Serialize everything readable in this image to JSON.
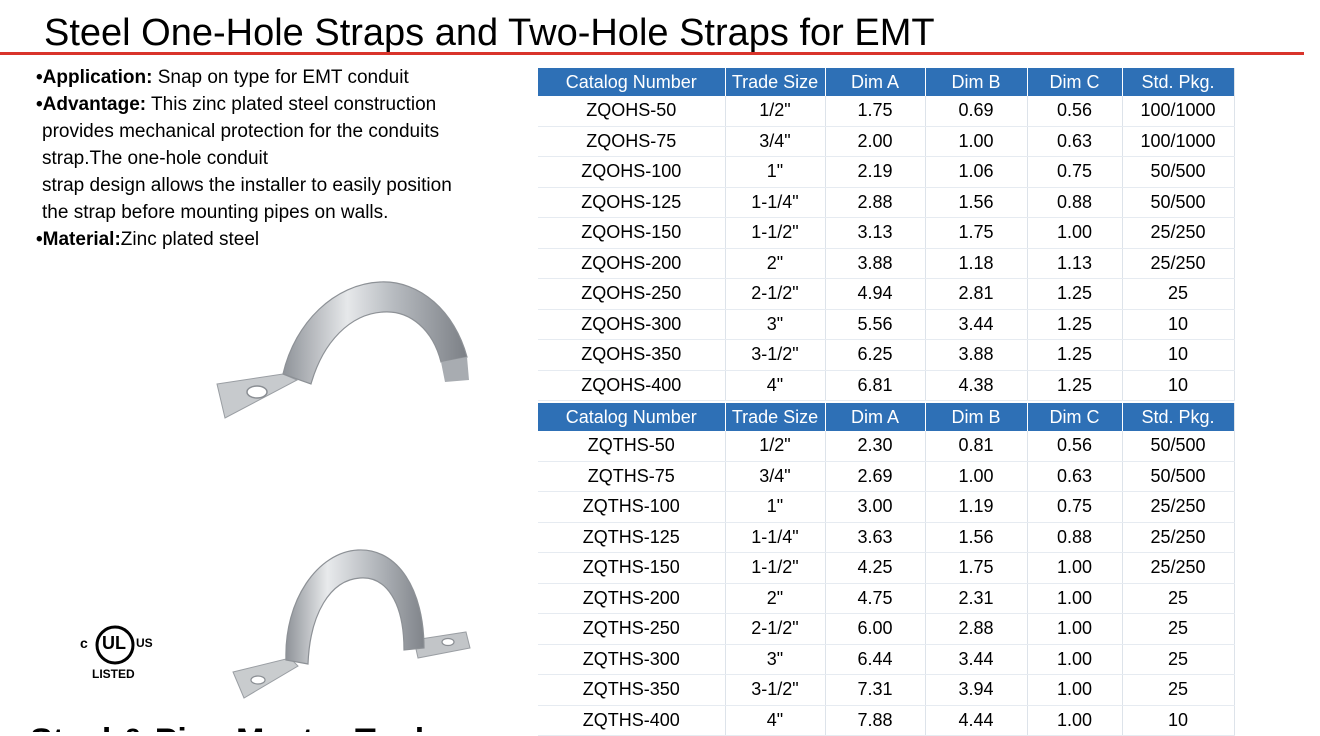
{
  "title": "Steel One-Hole Straps and Two-Hole Straps for EMT",
  "description": {
    "application_label": "•Application:",
    "application_text": " Snap on type for EMT conduit",
    "advantage_label": "•Advantage:",
    "advantage_line1": " This zinc plated steel construction",
    "advantage_line2": "provides mechanical protection for the conduits",
    "advantage_line3": "strap.The one-hole conduit",
    "advantage_line4": "strap design allows the installer to easily position",
    "advantage_line5": "the strap before mounting pipes on walls.",
    "material_label": "•Material:",
    "material_text": "Zinc plated steel"
  },
  "headers": [
    "Catalog Number",
    "Trade Size",
    "Dim A",
    "Dim B",
    "Dim C",
    "Std. Pkg."
  ],
  "one_hole": [
    [
      "ZQOHS-50",
      "1/2\"",
      "1.75",
      "0.69",
      "0.56",
      "100/1000"
    ],
    [
      "ZQOHS-75",
      "3/4\"",
      "2.00",
      "1.00",
      "0.63",
      "100/1000"
    ],
    [
      "ZQOHS-100",
      "1\"",
      "2.19",
      "1.06",
      "0.75",
      "50/500"
    ],
    [
      "ZQOHS-125",
      "1-1/4\"",
      "2.88",
      "1.56",
      "0.88",
      "50/500"
    ],
    [
      "ZQOHS-150",
      "1-1/2\"",
      "3.13",
      "1.75",
      "1.00",
      "25/250"
    ],
    [
      "ZQOHS-200",
      "2\"",
      "3.88",
      "1.18",
      "1.13",
      "25/250"
    ],
    [
      "ZQOHS-250",
      "2-1/2\"",
      "4.94",
      "2.81",
      "1.25",
      "25"
    ],
    [
      "ZQOHS-300",
      "3\"",
      "5.56",
      "3.44",
      "1.25",
      "10"
    ],
    [
      "ZQOHS-350",
      "3-1/2\"",
      "6.25",
      "3.88",
      "1.25",
      "10"
    ],
    [
      "ZQOHS-400",
      "4\"",
      "6.81",
      "4.38",
      "1.25",
      "10"
    ]
  ],
  "two_hole": [
    [
      "ZQTHS-50",
      "1/2\"",
      "2.30",
      "0.81",
      "0.56",
      "50/500"
    ],
    [
      "ZQTHS-75",
      "3/4\"",
      "2.69",
      "1.00",
      "0.63",
      "50/500"
    ],
    [
      "ZQTHS-100",
      "1\"",
      "3.00",
      "1.19",
      "0.75",
      "25/250"
    ],
    [
      "ZQTHS-125",
      "1-1/4\"",
      "3.63",
      "1.56",
      "0.88",
      "25/250"
    ],
    [
      "ZQTHS-150",
      "1-1/2\"",
      "4.25",
      "1.75",
      "1.00",
      "25/250"
    ],
    [
      "ZQTHS-200",
      "2\"",
      "4.75",
      "2.31",
      "1.00",
      "25"
    ],
    [
      "ZQTHS-250",
      "2-1/2\"",
      "6.00",
      "2.88",
      "1.00",
      "25"
    ],
    [
      "ZQTHS-300",
      "3\"",
      "6.44",
      "3.44",
      "1.00",
      "25"
    ],
    [
      "ZQTHS-350",
      "3-1/2\"",
      "7.31",
      "3.94",
      "1.00",
      "25"
    ],
    [
      "ZQTHS-400",
      "4\"",
      "7.88",
      "4.44",
      "1.00",
      "10"
    ]
  ],
  "ul_mark": {
    "c": "c",
    "ul": "UL",
    "us": "US",
    "listed": "LISTED"
  },
  "next_slide_title_fragment": "Steel & Pipe Master Tools",
  "colors": {
    "header_blue": "#2e70b6",
    "title_rule_red": "#d9342b"
  },
  "icons": [
    "one-hole-strap-photo",
    "two-hole-strap-photo",
    "ul-listed-logo"
  ]
}
